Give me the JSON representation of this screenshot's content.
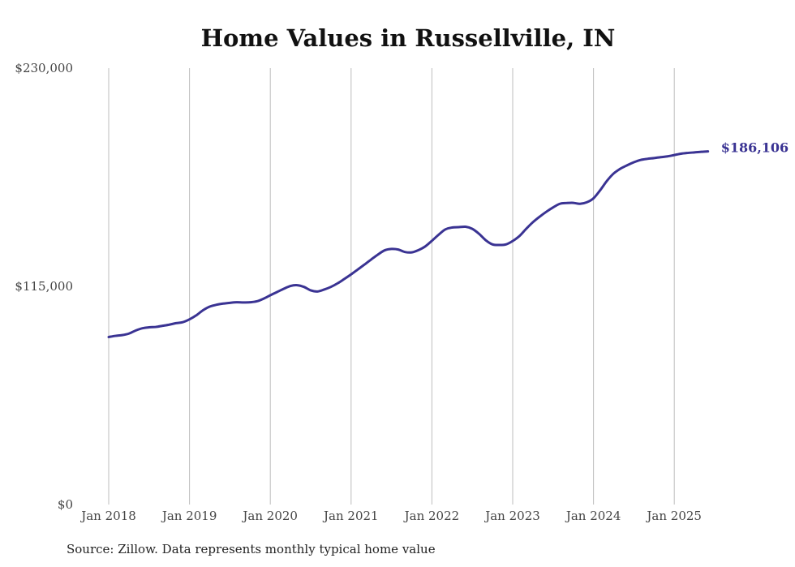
{
  "colors": {
    "series": "#3a3393",
    "grid": "#bdbdbd",
    "text": "#444444"
  },
  "footer": {
    "source": "Source: Zillow. Data represents monthly typical home value"
  },
  "chart_data": {
    "type": "line",
    "title": "Home Values in Russellville, IN",
    "xlabel": "",
    "ylabel": "",
    "ylim": [
      0,
      230000
    ],
    "grid": "vertical",
    "y_ticks": [
      {
        "value": 0,
        "label": "$0"
      },
      {
        "value": 115000,
        "label": "$115,000"
      },
      {
        "value": 230000,
        "label": "$230,000"
      }
    ],
    "x_ticks": [
      "Jan 2018",
      "Jan 2019",
      "Jan 2020",
      "Jan 2021",
      "Jan 2022",
      "Jan 2023",
      "Jan 2024",
      "Jan 2025"
    ],
    "end_label": "$186,106",
    "series": [
      {
        "dates": [
          "2018-01",
          "2018-02",
          "2018-03",
          "2018-04",
          "2018-05",
          "2018-06",
          "2018-07",
          "2018-08",
          "2018-09",
          "2018-10",
          "2018-11",
          "2018-12",
          "2019-01",
          "2019-02",
          "2019-03",
          "2019-04",
          "2019-05",
          "2019-06",
          "2019-07",
          "2019-08",
          "2019-09",
          "2019-10",
          "2019-11",
          "2019-12",
          "2020-01",
          "2020-02",
          "2020-03",
          "2020-04",
          "2020-05",
          "2020-06",
          "2020-07",
          "2020-08",
          "2020-09",
          "2020-10",
          "2020-11",
          "2020-12",
          "2021-01",
          "2021-02",
          "2021-03",
          "2021-04",
          "2021-05",
          "2021-06",
          "2021-07",
          "2021-08",
          "2021-09",
          "2021-10",
          "2021-11",
          "2021-12",
          "2022-01",
          "2022-02",
          "2022-03",
          "2022-04",
          "2022-05",
          "2022-06",
          "2022-07",
          "2022-08",
          "2022-09",
          "2022-10",
          "2022-11",
          "2022-12",
          "2023-01",
          "2023-02",
          "2023-03",
          "2023-04",
          "2023-05",
          "2023-06",
          "2023-07",
          "2023-08",
          "2023-09",
          "2023-10",
          "2023-11",
          "2023-12",
          "2024-01",
          "2024-02",
          "2024-03",
          "2024-04",
          "2024-05",
          "2024-06",
          "2024-07",
          "2024-08",
          "2024-09",
          "2024-10",
          "2024-11",
          "2024-12",
          "2025-01",
          "2025-02",
          "2025-03",
          "2025-04",
          "2025-05",
          "2025-06"
        ],
        "values": [
          88300,
          88900,
          89300,
          90100,
          91700,
          92900,
          93400,
          93600,
          94200,
          94800,
          95600,
          96100,
          97600,
          99700,
          102400,
          104300,
          105300,
          105900,
          106300,
          106600,
          106500,
          106600,
          107100,
          108500,
          110300,
          112000,
          113700,
          115200,
          115600,
          114700,
          112900,
          112300,
          113300,
          114700,
          116600,
          118900,
          121300,
          123900,
          126500,
          129200,
          131800,
          134000,
          134700,
          134400,
          133100,
          132900,
          134100,
          136000,
          139000,
          142200,
          145000,
          146000,
          146200,
          146400,
          145300,
          142700,
          139300,
          137100,
          136800,
          137100,
          138900,
          141500,
          145300,
          148800,
          151700,
          154300,
          156600,
          158500,
          158900,
          159000,
          158500,
          159300,
          161400,
          165700,
          170600,
          174500,
          177000,
          178800,
          180400,
          181600,
          182200,
          182600,
          183100,
          183500,
          184200,
          184900,
          185300,
          185600,
          185900,
          186106
        ]
      }
    ]
  }
}
